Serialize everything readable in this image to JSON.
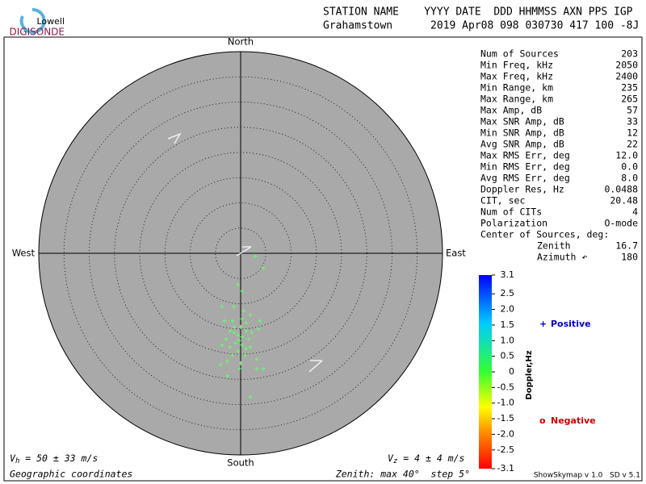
{
  "chart_data": {
    "type": "skymap",
    "logo": {
      "top": "Lowell",
      "bottom": "DIGISONDE"
    },
    "header": {
      "labels": "STATION NAME    YYYY DATE  DDD HHMMSS AXN PPS IGP",
      "values": "Grahamstown      2019 Apr08 098 030730 417 100 -8J"
    },
    "directions": {
      "north": "North",
      "south": "South",
      "east": "East",
      "west": "West"
    },
    "stats": [
      [
        "Num of Sources",
        "203"
      ],
      [
        "Min Freq, kHz",
        "2050"
      ],
      [
        "Max Freq, kHz",
        "2400"
      ],
      [
        "Min Range, km",
        "235"
      ],
      [
        "Max Range, km",
        "265"
      ],
      [
        "Max Amp, dB",
        "57"
      ],
      [
        "Max SNR Amp, dB",
        "33"
      ],
      [
        "Min SNR Amp, dB",
        "12"
      ],
      [
        "Avg SNR Amp, dB",
        "22"
      ],
      [
        "Max RMS Err, deg",
        "12.0"
      ],
      [
        "Min RMS Err, deg",
        "0.0"
      ],
      [
        "Avg RMS Err, deg",
        "8.0"
      ],
      [
        "Doppler Res, Hz",
        "0.0488"
      ],
      [
        "CIT, sec",
        "20.48"
      ],
      [
        "Num of CITs",
        "4"
      ],
      [
        "Polarization",
        "O-mode"
      ]
    ],
    "center_title": "Center of Sources, deg:",
    "center": [
      [
        "Zenith",
        "16.7"
      ],
      [
        "Azimuth ↶",
        "180"
      ]
    ],
    "rlim": [
      0,
      40
    ],
    "rticks": [
      5,
      10,
      15,
      20,
      25,
      30,
      35,
      40
    ],
    "colorbar": {
      "label": "Doppler,Hz",
      "clim": [
        -3.1,
        3.1
      ],
      "ticks": [
        3.1,
        2.5,
        {
          "value": 2,
          "label": "2.0"
        },
        1.5,
        {
          "value": 1,
          "label": "1.0"
        },
        0.5,
        0,
        -0.5,
        {
          "value": -1,
          "label": "-1.0"
        },
        -1.5,
        {
          "value": -2,
          "label": "-2.0"
        },
        -2.5,
        -3.1
      ]
    },
    "legend": [
      {
        "marker": "+",
        "text": "Positive",
        "color": "#0000cc"
      },
      {
        "marker": "o",
        "text": "Negative",
        "color": "#cc0000"
      }
    ],
    "vh": {
      "symbol": "V",
      "sub": "h",
      "text": " = 50 ± 33 m/s"
    },
    "vz": {
      "symbol": "V",
      "sub": "z",
      "text": " = 4 ± 4 m/s"
    },
    "footer": {
      "left": "Geographic coordinates",
      "middle": "Zenith: max 40°  step 5°",
      "right": "ShowSkymap v 1.0   SD v 5.1"
    },
    "sources": {
      "color": "#66ff66",
      "x": [
        2.9,
        4.5,
        0.2,
        -0.5,
        -3.7,
        -1.3,
        1.9,
        0.3,
        1.1,
        -1.3,
        -2.1,
        3.5,
        -0.5,
        0.3,
        1.6,
        -2.9,
        -1.0,
        0.3,
        -2.1,
        1.9,
        -0.5,
        0.8,
        -1.6,
        -3.7,
        3.2,
        -2.6,
        0.0,
        -4.0,
        4.5,
        3.2,
        -0.2,
        -2.6,
        1.9,
        1.1,
        0.0,
        2.2,
        -1.6,
        3.8,
        0.6,
        -3.2,
        -0.3,
        1.0,
        -1.3
      ],
      "y": [
        -0.6,
        -2.9,
        -7.5,
        -6.2,
        -10.6,
        -10.6,
        -12.2,
        -13.0,
        -13.8,
        -14.6,
        -15.4,
        -15.0,
        -16.2,
        -16.6,
        -17.0,
        -17.0,
        -17.8,
        -18.2,
        -18.6,
        -18.6,
        -19.4,
        -20.2,
        -20.2,
        -18.2,
        -21.0,
        -21.4,
        -21.8,
        -22.1,
        -22.9,
        -22.9,
        -22.9,
        -24.3,
        -28.5,
        -15.4,
        -14.6,
        -15.7,
        -13.4,
        -13.4,
        -11.4,
        -13.4,
        -17.3,
        -18.9,
        -15.7
      ]
    }
  }
}
